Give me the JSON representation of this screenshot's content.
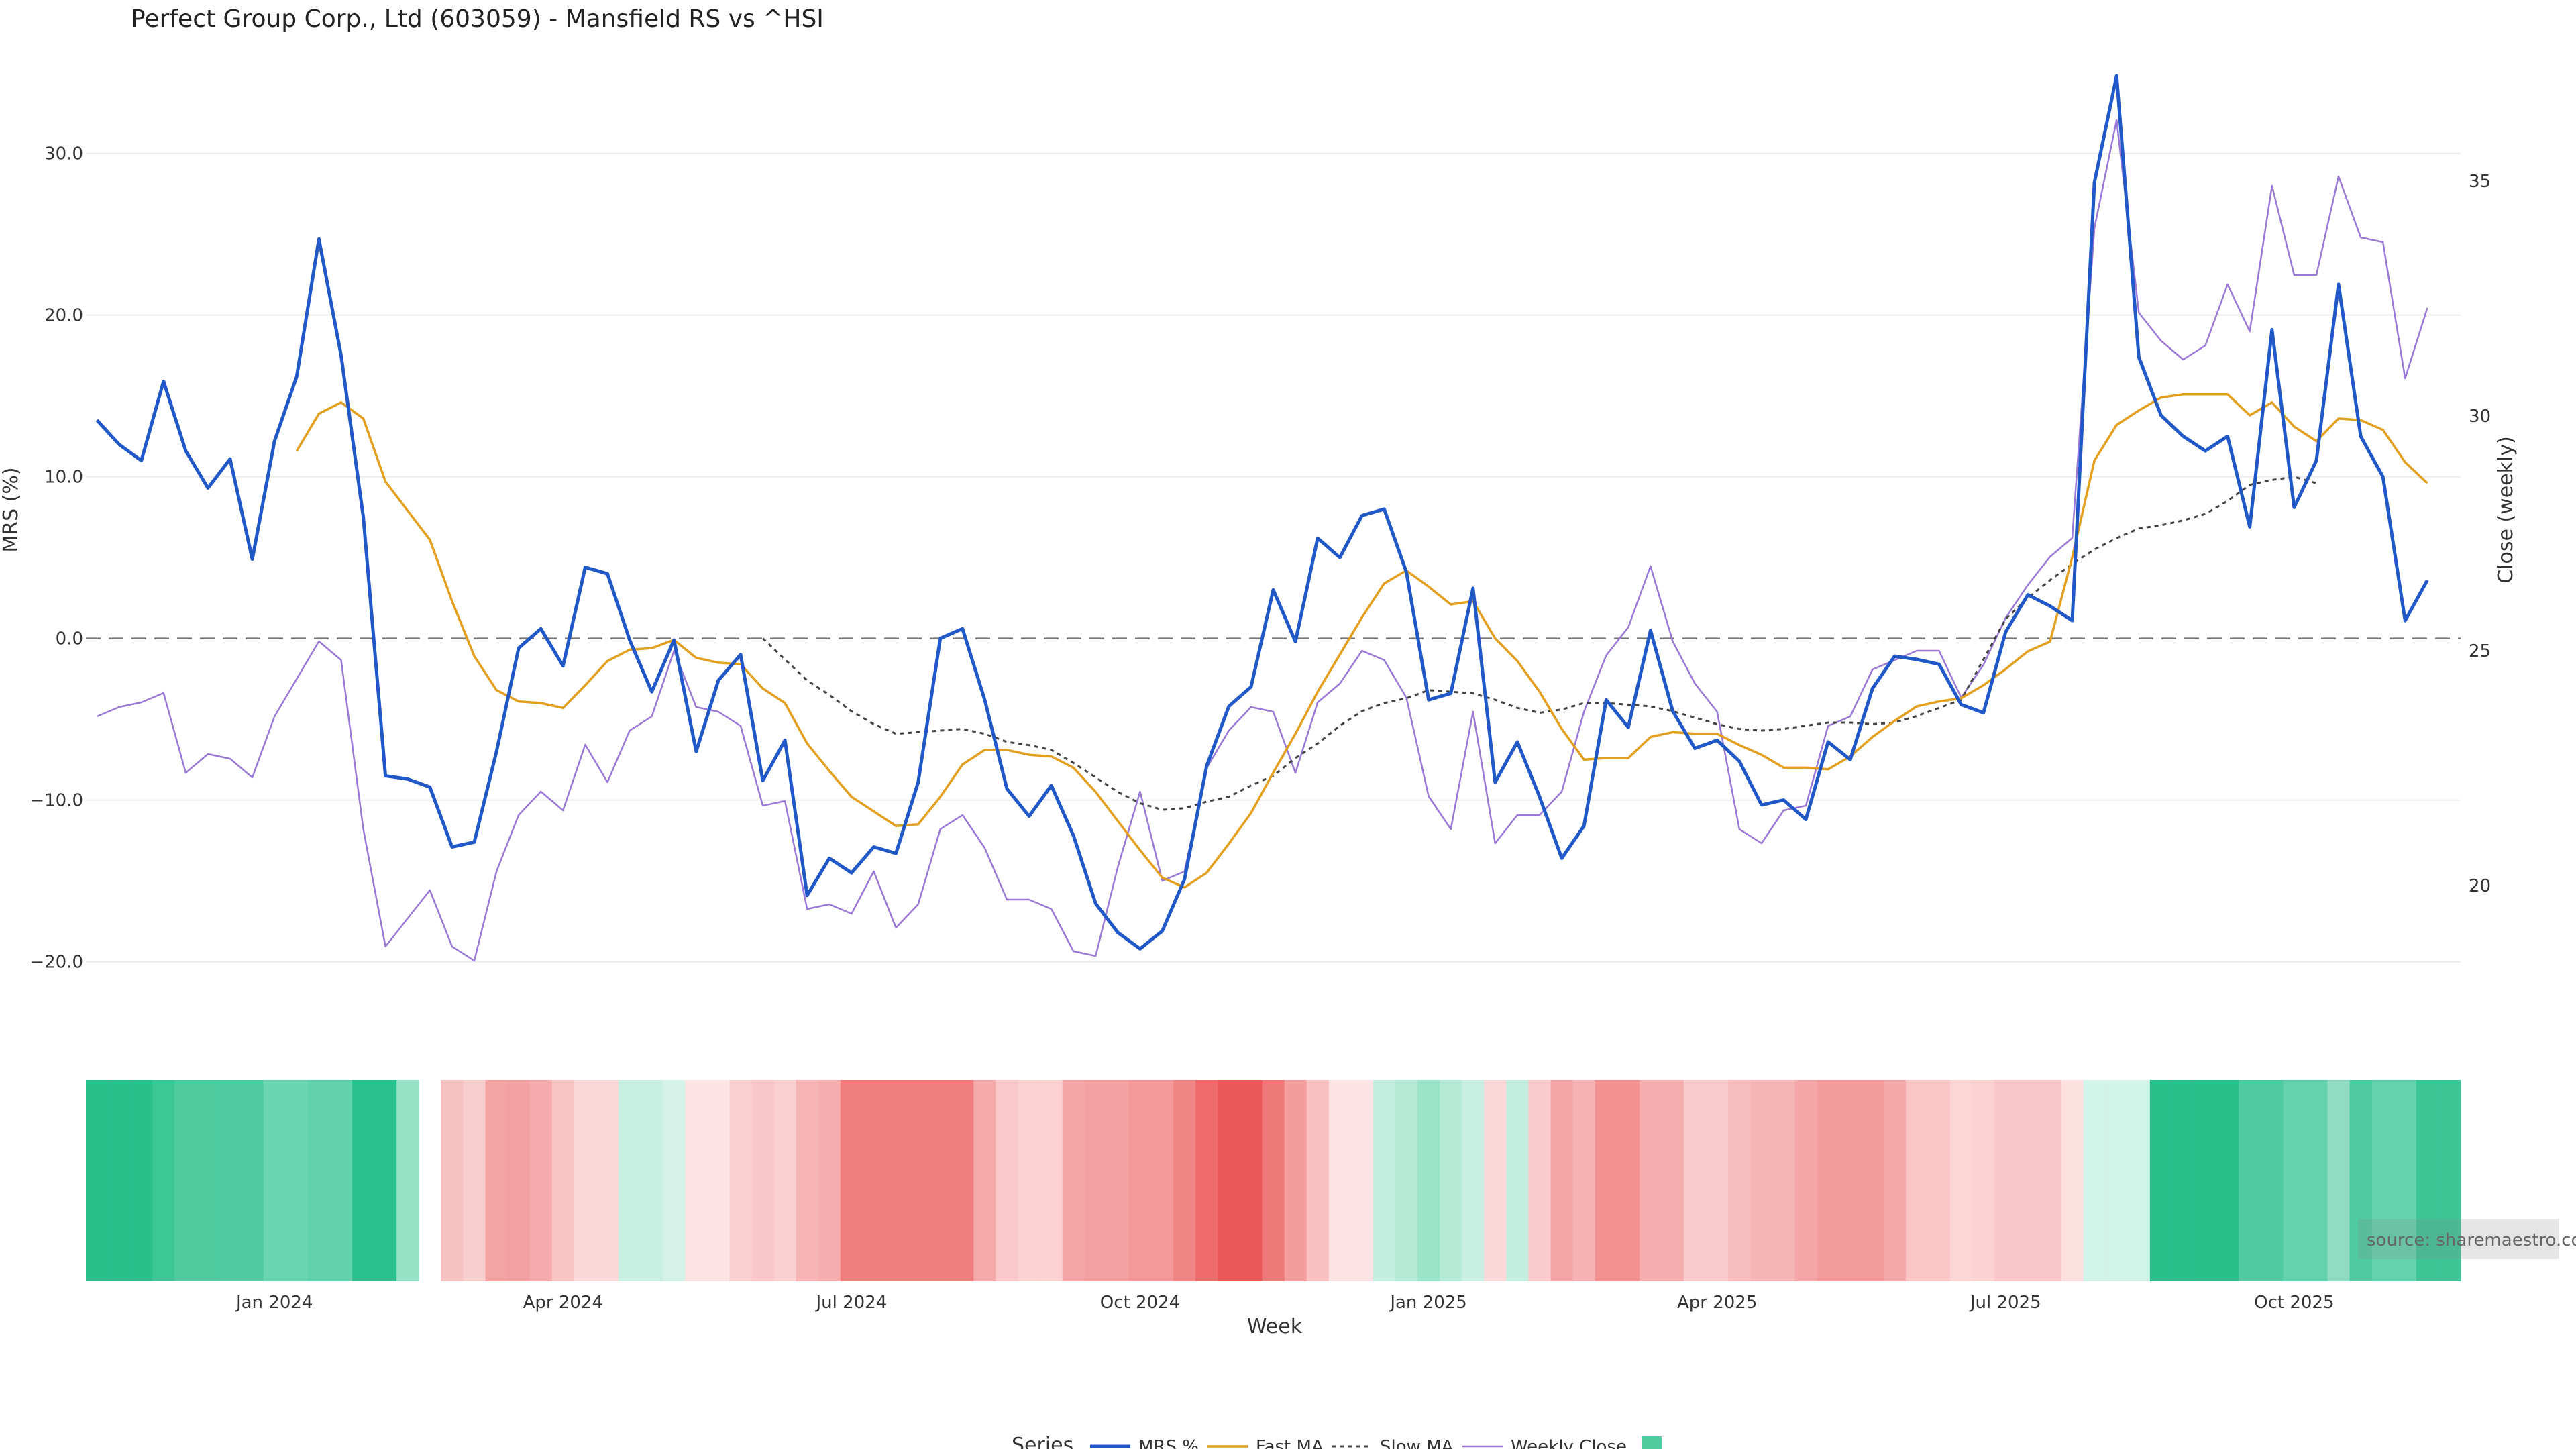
{
  "chart_data": {
    "type": "line",
    "title": "Perfect Group Corp., Ltd (603059) - Mansfield RS vs ^HSI",
    "xlabel": "Week",
    "ylabel_left": "MRS (%)",
    "ylabel_right": "Close (weekly)",
    "left_ylim": [
      -24,
      37
    ],
    "right_ylim": [
      17,
      38
    ],
    "left_yticks": [
      30,
      20,
      10,
      0,
      -10,
      -20
    ],
    "left_ytick_labels": [
      "30.0",
      "20.0",
      "10.0",
      "0.0",
      "−10.0",
      "−20.0"
    ],
    "right_yticks": [
      35,
      30,
      25,
      20
    ],
    "right_ytick_labels": [
      "35",
      "30",
      "25",
      "20"
    ],
    "x_ticks": [
      {
        "label": "Jan 2024",
        "week": 8
      },
      {
        "label": "Apr 2024",
        "week": 21
      },
      {
        "label": "Jul 2024",
        "week": 34
      },
      {
        "label": "Oct 2024",
        "week": 47
      },
      {
        "label": "Jan 2025",
        "week": 60
      },
      {
        "label": "Apr 2025",
        "week": 73
      },
      {
        "label": "Jul 2025",
        "week": 86
      },
      {
        "label": "Oct 2025",
        "week": 99
      }
    ],
    "week_count": 107,
    "zero_line": 0,
    "series": [
      {
        "name": "MRS %",
        "axis": "left",
        "color": "#2058c8",
        "values": [
          13.5,
          12.0,
          11.0,
          15.9,
          11.6,
          9.3,
          11.1,
          4.9,
          12.2,
          16.2,
          24.7,
          17.5,
          7.5,
          -8.5,
          -8.7,
          -9.2,
          -12.9,
          -12.6,
          -7.0,
          -0.6,
          0.6,
          -1.7,
          4.4,
          4.0,
          -0.1,
          -3.3,
          -0.1,
          -7.0,
          -2.6,
          -1.0,
          -8.8,
          -6.3,
          -15.9,
          -13.6,
          -14.5,
          -12.9,
          -13.3,
          -8.9,
          0.0,
          0.6,
          -3.8,
          -9.3,
          -11.0,
          -9.1,
          -12.2,
          -16.4,
          -18.2,
          -19.2,
          -18.1,
          -14.9,
          -7.9,
          -4.2,
          -3.0,
          3.0,
          -0.2,
          6.2,
          5.0,
          7.6,
          8.0,
          4.1,
          -3.8,
          -3.4,
          3.1,
          -8.9,
          -6.4,
          -9.8,
          -13.6,
          -11.6,
          -3.8,
          -5.5,
          0.5,
          -4.5,
          -6.8,
          -6.3,
          -7.6,
          -10.3,
          -10.0,
          -11.2,
          -6.4,
          -7.5,
          -3.1,
          -1.1,
          -1.3,
          -1.6,
          -4.1,
          -4.6,
          0.4,
          2.7,
          2.0,
          1.1,
          28.2,
          34.8,
          17.4,
          13.8,
          12.5,
          11.6,
          12.5,
          6.9,
          19.1,
          8.1,
          11.0,
          21.9,
          12.5,
          10.0,
          1.1,
          3.6
        ]
      },
      {
        "name": "Fast MA",
        "axis": "left",
        "color": "#e3a020",
        "start_week": 9,
        "values": [
          11.6,
          13.9,
          14.6,
          13.6,
          9.7,
          7.9,
          6.1,
          2.3,
          -1.1,
          -3.2,
          -3.9,
          -4.0,
          -4.3,
          -2.9,
          -1.4,
          -0.7,
          -0.6,
          -0.1,
          -1.2,
          -1.5,
          -1.6,
          -3.1,
          -4.0,
          -6.5,
          -8.2,
          -9.8,
          -10.7,
          -11.6,
          -11.5,
          -9.8,
          -7.8,
          -6.9,
          -6.9,
          -7.2,
          -7.3,
          -8.0,
          -9.5,
          -11.3,
          -13.1,
          -14.8,
          -15.4,
          -14.5,
          -12.7,
          -10.8,
          -8.3,
          -5.9,
          -3.3,
          -1.0,
          1.3,
          3.4,
          4.2,
          3.2,
          2.1,
          2.3,
          0.0,
          -1.4,
          -3.3,
          -5.6,
          -7.5,
          -7.4,
          -7.4,
          -6.1,
          -5.8,
          -5.9,
          -5.9,
          -6.6,
          -7.2,
          -8.0,
          -8.0,
          -8.1,
          -7.3,
          -6.1,
          -5.1,
          -4.2,
          -3.9,
          -3.7,
          -2.9,
          -1.9,
          -0.8,
          -0.2,
          5.0,
          11.0,
          13.2,
          14.1,
          14.9,
          15.1,
          15.1,
          15.1,
          13.8,
          14.6,
          13.1,
          12.2,
          13.6,
          13.5,
          12.9,
          10.9,
          9.6
        ]
      },
      {
        "name": "Slow MA",
        "axis": "left",
        "color": "#444444",
        "dash": true,
        "start_week": 30,
        "values": [
          0.0,
          -1.3,
          -2.6,
          -3.5,
          -4.5,
          -5.3,
          -5.9,
          -5.8,
          -5.7,
          -5.6,
          -5.9,
          -6.4,
          -6.6,
          -6.9,
          -7.7,
          -8.6,
          -9.5,
          -10.2,
          -10.6,
          -10.5,
          -10.1,
          -9.8,
          -9.1,
          -8.5,
          -7.4,
          -6.5,
          -5.4,
          -4.5,
          -4.0,
          -3.7,
          -3.2,
          -3.3,
          -3.4,
          -3.8,
          -4.3,
          -4.6,
          -4.4,
          -4.0,
          -4.0,
          -4.1,
          -4.2,
          -4.5,
          -4.9,
          -5.3,
          -5.6,
          -5.7,
          -5.6,
          -5.4,
          -5.2,
          -5.2,
          -5.3,
          -5.2,
          -4.8,
          -4.3,
          -3.8,
          -1.3,
          1.2,
          2.5,
          3.6,
          4.6,
          5.5,
          6.2,
          6.8,
          7.0,
          7.3,
          7.7,
          8.5,
          9.5,
          9.8,
          10.0,
          9.6
        ]
      },
      {
        "name": "Weekly Close",
        "axis": "right",
        "color": "#9a78d6",
        "values": [
          23.6,
          23.8,
          23.9,
          24.1,
          22.4,
          22.8,
          22.7,
          22.3,
          23.6,
          24.4,
          25.2,
          24.8,
          21.2,
          18.7,
          19.3,
          19.9,
          18.7,
          18.4,
          20.3,
          21.5,
          22.0,
          21.6,
          23.0,
          22.2,
          23.3,
          23.6,
          25.0,
          23.8,
          23.7,
          23.4,
          21.7,
          21.8,
          19.5,
          19.6,
          19.4,
          20.3,
          19.1,
          19.6,
          21.2,
          21.5,
          20.8,
          19.7,
          19.7,
          19.5,
          18.6,
          18.5,
          20.4,
          22.0,
          20.1,
          20.3,
          22.5,
          23.3,
          23.8,
          23.7,
          22.4,
          23.9,
          24.3,
          25.0,
          24.8,
          24.0,
          21.9,
          21.2,
          23.7,
          20.9,
          21.5,
          21.5,
          22.0,
          23.7,
          24.9,
          25.5,
          26.8,
          25.2,
          24.3,
          23.7,
          21.2,
          20.9,
          21.6,
          21.7,
          23.4,
          23.6,
          24.6,
          24.8,
          25.0,
          25.0,
          24.0,
          24.7,
          25.7,
          26.4,
          27.0,
          27.4,
          34.0,
          36.3,
          32.2,
          31.6,
          31.2,
          31.5,
          32.8,
          31.8,
          34.9,
          33.0,
          33.0,
          35.1,
          33.8,
          33.7,
          30.8,
          32.3
        ]
      }
    ],
    "heatmap_legend_entry": "",
    "heatmap_colors": [
      "#29c08c",
      "#29c08c",
      "#29c08c",
      "#3dc796",
      "#4ecca0",
      "#4ecca0",
      "#50cca2",
      "#50cca2",
      "#6bd4b0",
      "#6bd4b0",
      "#62d2ac",
      "#62d2ac",
      "#2bc18e",
      "#2bc18e",
      "#96e1c6",
      null,
      "#f6c1c1",
      "#f8cfcf",
      "#f4a3a3",
      "#f2a0a0",
      "#f5abab",
      "#f8c4c4",
      "#fbd8d8",
      "#fbd8d8",
      "#c8efe1",
      "#c8efe1",
      "#d4f2e7",
      "#fde3e3",
      "#fde3e3",
      "#fad0d0",
      "#f9c7c7",
      "#fad0d0",
      "#f7b4b4",
      "#f6adad",
      "#f07e7e",
      "#f07e7e",
      "#f07e7e",
      "#f07e7e",
      "#f07e7e",
      "#f07e7e",
      "#f5aaaa",
      "#f9c8c8",
      "#fbd1d1",
      "#fbd1d1",
      "#f6a6a6",
      "#f4a0a0",
      "#f4a0a0",
      "#f39999",
      "#f39999",
      "#f08585",
      "#ee6c6c",
      "#ec5858",
      "#ec5858",
      "#ef7878",
      "#f49d9d",
      "#f8c0c0",
      "#fde3e3",
      "#fde3e3",
      "#c3eedf",
      "#b5ead7",
      "#9be3c9",
      "#b5ead7",
      "#c9efe2",
      "#fbd8d8",
      "#c3eedf",
      "#f9cbcb",
      "#f4a5a5",
      "#f5b2b2",
      "#f39090",
      "#f39090",
      "#f6adad",
      "#f6adad",
      "#f9cbcb",
      "#f9cbcb",
      "#f7bdbd",
      "#f6b5b5",
      "#f6b5b5",
      "#f5a6a6",
      "#f49c9c",
      "#f49c9c",
      "#f49c9c",
      "#f5a8a8",
      "#f9c5c5",
      "#f9c5c5",
      "#fcd5d5",
      "#fbd1d1",
      "#f9c7c7",
      "#f9c7c7",
      "#f9c7c7",
      "#fde0e0",
      "#d2f3e8",
      "#d2f3e8",
      "#d2f3e8",
      "#29c08c",
      "#29c08c",
      "#29c08c",
      "#29c08c",
      "#4fcba1",
      "#4fcba1",
      "#63d2ad",
      "#63d2ad",
      "#8fdcc2",
      "#4fcba1",
      "#63d2ad",
      "#63d2ad",
      "#3dc596",
      "#3dc596"
    ],
    "source_label": "source: sharemaestro.com",
    "legend_title": "Series",
    "legend_entries": [
      "MRS %",
      "Fast MA",
      "Slow MA",
      "Weekly Close",
      ""
    ]
  }
}
